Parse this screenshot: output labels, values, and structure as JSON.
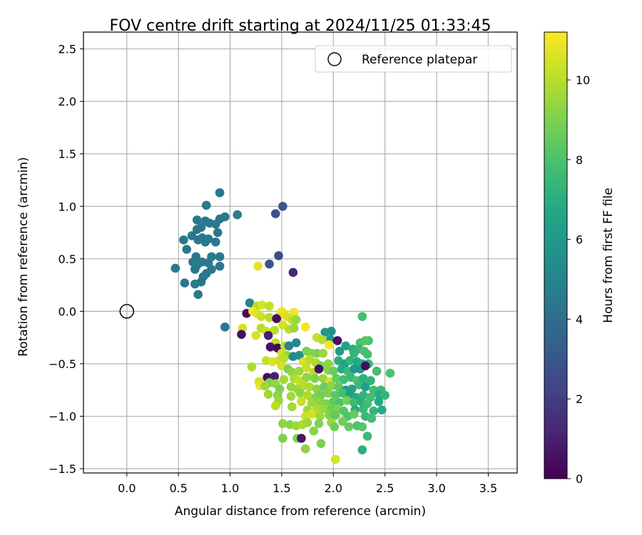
{
  "chart_data": {
    "type": "scatter",
    "title": "FOV centre drift starting at 2024/11/25 01:33:45",
    "xlabel": "Angular distance from reference (arcmin)",
    "ylabel": "Rotation from reference (arcmin)",
    "xlim": [
      -0.42,
      3.78
    ],
    "ylim": [
      -1.54,
      2.66
    ],
    "xticks": [
      0.0,
      0.5,
      1.0,
      1.5,
      2.0,
      2.5,
      3.0,
      3.5
    ],
    "xtick_labels": [
      "0.0",
      "0.5",
      "1.0",
      "1.5",
      "2.0",
      "2.5",
      "3.0",
      "3.5"
    ],
    "yticks": [
      -1.5,
      -1.0,
      -0.5,
      0.0,
      0.5,
      1.0,
      1.5,
      2.0,
      2.5
    ],
    "ytick_labels": [
      "−1.5",
      "−1.0",
      "−0.5",
      "0.0",
      "0.5",
      "1.0",
      "1.5",
      "2.0",
      "2.5"
    ],
    "grid": true,
    "legend": {
      "position": "top-right",
      "entries": [
        "Reference platepar"
      ]
    },
    "reference_point": {
      "x": 0.0,
      "y": 0.0
    },
    "colorbar": {
      "label": "Hours from first FF file",
      "range": [
        0,
        11.2
      ],
      "ticks": [
        0,
        2,
        4,
        6,
        8,
        10
      ],
      "tick_labels": [
        "0",
        "2",
        "4",
        "6",
        "8",
        "10"
      ],
      "colormap": "viridis"
    },
    "points": [
      {
        "x": 1.51,
        "y": 1.0,
        "c": 3.0
      },
      {
        "x": 1.44,
        "y": 0.93,
        "c": 3.0
      },
      {
        "x": 1.47,
        "y": 0.53,
        "c": 2.6
      },
      {
        "x": 1.38,
        "y": 0.45,
        "c": 3.0
      },
      {
        "x": 1.61,
        "y": 0.37,
        "c": 1.2
      },
      {
        "x": 0.9,
        "y": 1.13,
        "c": 4.5
      },
      {
        "x": 0.77,
        "y": 1.01,
        "c": 4.5
      },
      {
        "x": 1.07,
        "y": 0.92,
        "c": 4.6
      },
      {
        "x": 0.95,
        "y": 0.9,
        "c": 4.5
      },
      {
        "x": 0.9,
        "y": 0.88,
        "c": 4.4
      },
      {
        "x": 0.68,
        "y": 0.87,
        "c": 4.5
      },
      {
        "x": 0.76,
        "y": 0.86,
        "c": 4.6
      },
      {
        "x": 0.8,
        "y": 0.84,
        "c": 4.5
      },
      {
        "x": 0.86,
        "y": 0.83,
        "c": 4.5
      },
      {
        "x": 0.72,
        "y": 0.8,
        "c": 4.5
      },
      {
        "x": 0.68,
        "y": 0.78,
        "c": 4.4
      },
      {
        "x": 0.88,
        "y": 0.75,
        "c": 4.5
      },
      {
        "x": 0.63,
        "y": 0.72,
        "c": 4.5
      },
      {
        "x": 0.73,
        "y": 0.7,
        "c": 4.4
      },
      {
        "x": 0.79,
        "y": 0.69,
        "c": 4.5
      },
      {
        "x": 0.55,
        "y": 0.68,
        "c": 4.6
      },
      {
        "x": 0.69,
        "y": 0.68,
        "c": 4.5
      },
      {
        "x": 0.76,
        "y": 0.66,
        "c": 4.5
      },
      {
        "x": 0.86,
        "y": 0.66,
        "c": 4.5
      },
      {
        "x": 0.58,
        "y": 0.59,
        "c": 4.5
      },
      {
        "x": 0.67,
        "y": 0.52,
        "c": 4.5
      },
      {
        "x": 0.82,
        "y": 0.52,
        "c": 4.6
      },
      {
        "x": 0.9,
        "y": 0.52,
        "c": 4.5
      },
      {
        "x": 0.64,
        "y": 0.47,
        "c": 4.5
      },
      {
        "x": 0.73,
        "y": 0.47,
        "c": 4.5
      },
      {
        "x": 0.79,
        "y": 0.46,
        "c": 4.5
      },
      {
        "x": 0.68,
        "y": 0.44,
        "c": 4.6
      },
      {
        "x": 0.9,
        "y": 0.43,
        "c": 4.5
      },
      {
        "x": 0.47,
        "y": 0.41,
        "c": 4.6
      },
      {
        "x": 0.66,
        "y": 0.4,
        "c": 4.5
      },
      {
        "x": 0.82,
        "y": 0.4,
        "c": 4.5
      },
      {
        "x": 0.77,
        "y": 0.36,
        "c": 4.5
      },
      {
        "x": 0.74,
        "y": 0.33,
        "c": 4.5
      },
      {
        "x": 0.56,
        "y": 0.27,
        "c": 4.5
      },
      {
        "x": 0.72,
        "y": 0.28,
        "c": 4.3
      },
      {
        "x": 0.66,
        "y": 0.26,
        "c": 4.5
      },
      {
        "x": 0.69,
        "y": 0.16,
        "c": 4.5
      },
      {
        "x": 0.95,
        "y": -0.15,
        "c": 4.5
      },
      {
        "x": 1.27,
        "y": 0.43,
        "c": 10.8
      },
      {
        "x": 1.19,
        "y": 0.08,
        "c": 5.0
      },
      {
        "x": 1.26,
        "y": 0.05,
        "c": 10.0
      },
      {
        "x": 1.31,
        "y": 0.06,
        "c": 10.6
      },
      {
        "x": 1.38,
        "y": 0.05,
        "c": 10.2
      },
      {
        "x": 1.16,
        "y": -0.02,
        "c": 0.3
      },
      {
        "x": 1.22,
        "y": 0.0,
        "c": 11.0
      },
      {
        "x": 1.26,
        "y": -0.02,
        "c": 10.7
      },
      {
        "x": 1.3,
        "y": -0.05,
        "c": 10.4
      },
      {
        "x": 1.38,
        "y": -0.06,
        "c": 10.0
      },
      {
        "x": 1.48,
        "y": -0.04,
        "c": 10.5
      },
      {
        "x": 1.5,
        "y": 0.0,
        "c": 11.0
      },
      {
        "x": 1.52,
        "y": -0.02,
        "c": 10.8
      },
      {
        "x": 1.55,
        "y": -0.05,
        "c": 10.5
      },
      {
        "x": 1.62,
        "y": -0.01,
        "c": 11.0
      },
      {
        "x": 1.45,
        "y": -0.07,
        "c": 0.4
      },
      {
        "x": 1.6,
        "y": -0.08,
        "c": 10.2
      },
      {
        "x": 1.64,
        "y": -0.08,
        "c": 9.5
      },
      {
        "x": 1.12,
        "y": -0.16,
        "c": 10.5
      },
      {
        "x": 1.11,
        "y": -0.22,
        "c": 0.5
      },
      {
        "x": 1.3,
        "y": -0.16,
        "c": 10.0
      },
      {
        "x": 1.35,
        "y": -0.19,
        "c": 10.3
      },
      {
        "x": 1.43,
        "y": -0.18,
        "c": 10.0
      },
      {
        "x": 1.51,
        "y": -0.13,
        "c": 10.5
      },
      {
        "x": 1.57,
        "y": -0.17,
        "c": 10.0
      },
      {
        "x": 1.62,
        "y": -0.16,
        "c": 9.5
      },
      {
        "x": 1.73,
        "y": -0.15,
        "c": 11.0
      },
      {
        "x": 1.25,
        "y": -0.23,
        "c": 10.5
      },
      {
        "x": 1.37,
        "y": -0.23,
        "c": 1.0
      },
      {
        "x": 1.44,
        "y": -0.3,
        "c": 10.2
      },
      {
        "x": 1.39,
        "y": -0.34,
        "c": 0.6
      },
      {
        "x": 1.46,
        "y": -0.35,
        "c": 0.3
      },
      {
        "x": 1.53,
        "y": -0.33,
        "c": 10.0
      },
      {
        "x": 1.57,
        "y": -0.33,
        "c": 5.0
      },
      {
        "x": 1.64,
        "y": -0.3,
        "c": 5.2
      },
      {
        "x": 1.84,
        "y": -0.25,
        "c": 10.2
      },
      {
        "x": 1.92,
        "y": -0.2,
        "c": 5.8
      },
      {
        "x": 1.98,
        "y": -0.19,
        "c": 5.7
      },
      {
        "x": 1.97,
        "y": -0.27,
        "c": 5.8
      },
      {
        "x": 1.96,
        "y": -0.32,
        "c": 11.0
      },
      {
        "x": 1.89,
        "y": -0.27,
        "c": 10.0
      },
      {
        "x": 2.04,
        "y": -0.28,
        "c": 0.5
      },
      {
        "x": 2.28,
        "y": -0.05,
        "c": 7.8
      },
      {
        "x": 2.34,
        "y": -0.28,
        "c": 7.8
      },
      {
        "x": 2.31,
        "y": -0.28,
        "c": 8.2
      },
      {
        "x": 2.26,
        "y": -0.3,
        "c": 8.0
      },
      {
        "x": 2.12,
        "y": -0.33,
        "c": 6.5
      },
      {
        "x": 2.19,
        "y": -0.36,
        "c": 7.0
      },
      {
        "x": 2.24,
        "y": -0.36,
        "c": 7.5
      },
      {
        "x": 2.3,
        "y": -0.38,
        "c": 8.0
      },
      {
        "x": 2.33,
        "y": -0.41,
        "c": 7.8
      },
      {
        "x": 2.2,
        "y": -0.4,
        "c": 7.3
      },
      {
        "x": 2.06,
        "y": -0.38,
        "c": 6.0
      },
      {
        "x": 1.5,
        "y": -0.4,
        "c": 10.4
      },
      {
        "x": 1.55,
        "y": -0.42,
        "c": 9.5
      },
      {
        "x": 1.61,
        "y": -0.43,
        "c": 5.2
      },
      {
        "x": 1.67,
        "y": -0.42,
        "c": 5.5
      },
      {
        "x": 1.74,
        "y": -0.38,
        "c": 9.0
      },
      {
        "x": 1.79,
        "y": -0.4,
        "c": 9.2
      },
      {
        "x": 1.84,
        "y": -0.4,
        "c": 9.0
      },
      {
        "x": 1.9,
        "y": -0.4,
        "c": 9.5
      },
      {
        "x": 1.35,
        "y": -0.47,
        "c": 10.2
      },
      {
        "x": 1.41,
        "y": -0.48,
        "c": 10.6
      },
      {
        "x": 1.47,
        "y": -0.47,
        "c": 10.4
      },
      {
        "x": 1.52,
        "y": -0.45,
        "c": 10.0
      },
      {
        "x": 1.71,
        "y": -0.48,
        "c": 10.5
      },
      {
        "x": 1.77,
        "y": -0.46,
        "c": 10.0
      },
      {
        "x": 1.83,
        "y": -0.49,
        "c": 9.8
      },
      {
        "x": 1.88,
        "y": -0.52,
        "c": 9.0
      },
      {
        "x": 1.95,
        "y": -0.5,
        "c": 9.3
      },
      {
        "x": 2.05,
        "y": -0.47,
        "c": 7.0
      },
      {
        "x": 2.11,
        "y": -0.5,
        "c": 6.5
      },
      {
        "x": 2.16,
        "y": -0.47,
        "c": 7.2
      },
      {
        "x": 2.23,
        "y": -0.48,
        "c": 6.8
      },
      {
        "x": 2.28,
        "y": -0.5,
        "c": 7.0
      },
      {
        "x": 2.34,
        "y": -0.5,
        "c": 7.4
      },
      {
        "x": 1.21,
        "y": -0.53,
        "c": 9.8
      },
      {
        "x": 1.5,
        "y": -0.52,
        "c": 10.5
      },
      {
        "x": 1.56,
        "y": -0.55,
        "c": 9.0
      },
      {
        "x": 1.6,
        "y": -0.58,
        "c": 9.3
      },
      {
        "x": 1.67,
        "y": -0.57,
        "c": 9.5
      },
      {
        "x": 1.74,
        "y": -0.54,
        "c": 10.3
      },
      {
        "x": 1.81,
        "y": -0.58,
        "c": 10.0
      },
      {
        "x": 1.86,
        "y": -0.55,
        "c": 0.5
      },
      {
        "x": 1.95,
        "y": -0.56,
        "c": 9.2
      },
      {
        "x": 2.0,
        "y": -0.57,
        "c": 8.7
      },
      {
        "x": 2.08,
        "y": -0.55,
        "c": 6.8
      },
      {
        "x": 2.14,
        "y": -0.57,
        "c": 7.5
      },
      {
        "x": 2.2,
        "y": -0.55,
        "c": 6.0
      },
      {
        "x": 2.26,
        "y": -0.55,
        "c": 6.0
      },
      {
        "x": 2.31,
        "y": -0.52,
        "c": 0.4
      },
      {
        "x": 2.42,
        "y": -0.57,
        "c": 7.8
      },
      {
        "x": 2.55,
        "y": -0.59,
        "c": 8.0
      },
      {
        "x": 1.36,
        "y": -0.63,
        "c": 0.4
      },
      {
        "x": 1.43,
        "y": -0.62,
        "c": 1.0
      },
      {
        "x": 1.52,
        "y": -0.65,
        "c": 9.6
      },
      {
        "x": 1.28,
        "y": -0.67,
        "c": 10.5
      },
      {
        "x": 1.38,
        "y": -0.68,
        "c": 9.0
      },
      {
        "x": 1.44,
        "y": -0.69,
        "c": 9.4
      },
      {
        "x": 1.62,
        "y": -0.64,
        "c": 9.8
      },
      {
        "x": 1.67,
        "y": -0.66,
        "c": 10.2
      },
      {
        "x": 1.74,
        "y": -0.63,
        "c": 9.3
      },
      {
        "x": 1.82,
        "y": -0.64,
        "c": 9.0
      },
      {
        "x": 1.9,
        "y": -0.64,
        "c": 9.5
      },
      {
        "x": 1.97,
        "y": -0.67,
        "c": 10.5
      },
      {
        "x": 2.03,
        "y": -0.64,
        "c": 8.5
      },
      {
        "x": 2.1,
        "y": -0.65,
        "c": 7.8
      },
      {
        "x": 2.17,
        "y": -0.63,
        "c": 7.5
      },
      {
        "x": 2.23,
        "y": -0.66,
        "c": 8.0
      },
      {
        "x": 2.29,
        "y": -0.64,
        "c": 7.0
      },
      {
        "x": 2.36,
        "y": -0.66,
        "c": 7.2
      },
      {
        "x": 1.29,
        "y": -0.71,
        "c": 10.8
      },
      {
        "x": 1.34,
        "y": -0.71,
        "c": 9.5
      },
      {
        "x": 1.48,
        "y": -0.74,
        "c": 9.0
      },
      {
        "x": 1.59,
        "y": -0.72,
        "c": 9.4
      },
      {
        "x": 1.65,
        "y": -0.74,
        "c": 9.5
      },
      {
        "x": 1.72,
        "y": -0.71,
        "c": 10.0
      },
      {
        "x": 1.77,
        "y": -0.72,
        "c": 9.8
      },
      {
        "x": 1.84,
        "y": -0.74,
        "c": 9.2
      },
      {
        "x": 1.91,
        "y": -0.72,
        "c": 8.6
      },
      {
        "x": 1.98,
        "y": -0.71,
        "c": 9.3
      },
      {
        "x": 2.05,
        "y": -0.72,
        "c": 8.4
      },
      {
        "x": 2.12,
        "y": -0.75,
        "c": 6.0
      },
      {
        "x": 2.18,
        "y": -0.74,
        "c": 6.5
      },
      {
        "x": 2.25,
        "y": -0.7,
        "c": 7.5
      },
      {
        "x": 2.31,
        "y": -0.72,
        "c": 6.4
      },
      {
        "x": 2.39,
        "y": -0.75,
        "c": 7.8
      },
      {
        "x": 2.46,
        "y": -0.75,
        "c": 7.5
      },
      {
        "x": 1.37,
        "y": -0.79,
        "c": 9.6
      },
      {
        "x": 1.46,
        "y": -0.8,
        "c": 9.2
      },
      {
        "x": 1.59,
        "y": -0.81,
        "c": 9.6
      },
      {
        "x": 1.68,
        "y": -0.78,
        "c": 9.3
      },
      {
        "x": 1.75,
        "y": -0.8,
        "c": 9.8
      },
      {
        "x": 1.83,
        "y": -0.82,
        "c": 9.0
      },
      {
        "x": 1.88,
        "y": -0.8,
        "c": 8.8
      },
      {
        "x": 1.95,
        "y": -0.78,
        "c": 9.0
      },
      {
        "x": 2.02,
        "y": -0.8,
        "c": 8.3
      },
      {
        "x": 2.09,
        "y": -0.78,
        "c": 7.8
      },
      {
        "x": 2.16,
        "y": -0.79,
        "c": 6.3
      },
      {
        "x": 2.22,
        "y": -0.82,
        "c": 6.8
      },
      {
        "x": 2.29,
        "y": -0.8,
        "c": 7.3
      },
      {
        "x": 2.36,
        "y": -0.82,
        "c": 7.8
      },
      {
        "x": 2.44,
        "y": -0.79,
        "c": 7.0
      },
      {
        "x": 2.5,
        "y": -0.8,
        "c": 7.3
      },
      {
        "x": 1.47,
        "y": -0.85,
        "c": 9.5
      },
      {
        "x": 1.69,
        "y": -0.86,
        "c": 10.3
      },
      {
        "x": 1.79,
        "y": -0.87,
        "c": 9.5
      },
      {
        "x": 1.87,
        "y": -0.86,
        "c": 9.3
      },
      {
        "x": 1.93,
        "y": -0.88,
        "c": 9.0
      },
      {
        "x": 2.0,
        "y": -0.86,
        "c": 8.5
      },
      {
        "x": 2.06,
        "y": -0.87,
        "c": 8.0
      },
      {
        "x": 2.13,
        "y": -0.85,
        "c": 8.8
      },
      {
        "x": 2.2,
        "y": -0.87,
        "c": 7.6
      },
      {
        "x": 2.27,
        "y": -0.86,
        "c": 7.0
      },
      {
        "x": 2.33,
        "y": -0.88,
        "c": 7.8
      },
      {
        "x": 2.44,
        "y": -0.86,
        "c": 6.8
      },
      {
        "x": 1.44,
        "y": -0.9,
        "c": 10.0
      },
      {
        "x": 1.6,
        "y": -0.91,
        "c": 9.6
      },
      {
        "x": 1.75,
        "y": -0.94,
        "c": 9.6
      },
      {
        "x": 1.84,
        "y": -0.93,
        "c": 9.8
      },
      {
        "x": 1.91,
        "y": -0.93,
        "c": 9.5
      },
      {
        "x": 1.98,
        "y": -0.94,
        "c": 8.7
      },
      {
        "x": 2.04,
        "y": -0.93,
        "c": 9.0
      },
      {
        "x": 2.1,
        "y": -0.95,
        "c": 8.2
      },
      {
        "x": 2.21,
        "y": -0.94,
        "c": 6.8
      },
      {
        "x": 2.29,
        "y": -0.93,
        "c": 7.5
      },
      {
        "x": 2.39,
        "y": -0.95,
        "c": 7.3
      },
      {
        "x": 2.47,
        "y": -0.94,
        "c": 6.8
      },
      {
        "x": 1.73,
        "y": -1.0,
        "c": 10.3
      },
      {
        "x": 1.79,
        "y": -0.98,
        "c": 10.5
      },
      {
        "x": 1.87,
        "y": -1.0,
        "c": 9.5
      },
      {
        "x": 1.96,
        "y": -0.99,
        "c": 9.0
      },
      {
        "x": 2.02,
        "y": -0.99,
        "c": 8.5
      },
      {
        "x": 2.14,
        "y": -1.0,
        "c": 8.0
      },
      {
        "x": 2.2,
        "y": -0.98,
        "c": 8.5
      },
      {
        "x": 2.31,
        "y": -1.0,
        "c": 7.5
      },
      {
        "x": 2.37,
        "y": -1.02,
        "c": 7.8
      },
      {
        "x": 1.98,
        "y": -1.06,
        "c": 9.5
      },
      {
        "x": 2.09,
        "y": -1.05,
        "c": 8.8
      },
      {
        "x": 1.51,
        "y": -1.07,
        "c": 9.3
      },
      {
        "x": 1.58,
        "y": -1.08,
        "c": 9.2
      },
      {
        "x": 1.64,
        "y": -1.09,
        "c": 9.5
      },
      {
        "x": 1.7,
        "y": -1.08,
        "c": 9.8
      },
      {
        "x": 1.75,
        "y": -1.06,
        "c": 9.5
      },
      {
        "x": 1.86,
        "y": -1.07,
        "c": 9.1
      },
      {
        "x": 2.23,
        "y": -1.09,
        "c": 8.0
      },
      {
        "x": 2.28,
        "y": -1.1,
        "c": 8.2
      },
      {
        "x": 2.15,
        "y": -1.1,
        "c": 8.5
      },
      {
        "x": 2.01,
        "y": -1.1,
        "c": 8.8
      },
      {
        "x": 1.81,
        "y": -1.14,
        "c": 9.2
      },
      {
        "x": 1.51,
        "y": -1.21,
        "c": 9.0
      },
      {
        "x": 1.65,
        "y": -1.21,
        "c": 9.0
      },
      {
        "x": 1.69,
        "y": -1.21,
        "c": 0.7
      },
      {
        "x": 1.88,
        "y": -1.26,
        "c": 9.0
      },
      {
        "x": 2.33,
        "y": -1.19,
        "c": 7.5
      },
      {
        "x": 1.73,
        "y": -1.31,
        "c": 9.3
      },
      {
        "x": 2.28,
        "y": -1.32,
        "c": 7.0
      },
      {
        "x": 2.02,
        "y": -1.41,
        "c": 10.5
      }
    ]
  }
}
